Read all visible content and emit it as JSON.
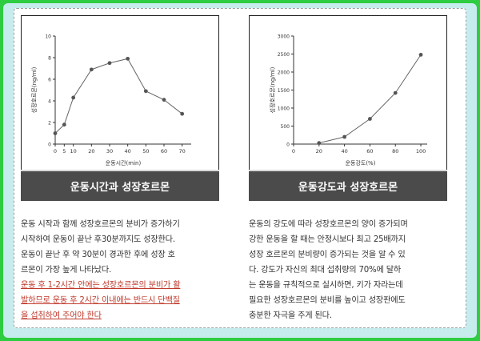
{
  "chart_data": [
    {
      "type": "line",
      "title": "운동시간과 성장호르몬",
      "xlabel": "운동시간(min)",
      "ylabel": "성장호르몬(ng/ml)",
      "x": [
        0,
        5,
        10,
        20,
        30,
        40,
        50,
        60,
        70
      ],
      "values": [
        1,
        1.8,
        4.3,
        6.9,
        7.5,
        7.9,
        4.9,
        4.1,
        2.8
      ],
      "xlim": [
        0,
        75
      ],
      "ylim": [
        0,
        10
      ],
      "xticks": [
        "0",
        "5",
        "10",
        "20",
        "30",
        "40",
        "50",
        "60",
        "70"
      ],
      "yticks": [
        "0",
        "2",
        "4",
        "6",
        "8",
        "10"
      ],
      "color": "#555555"
    },
    {
      "type": "line",
      "title": "운동강도과 성장호르몬",
      "xlabel": "운동강도(%)",
      "ylabel": "성장호르몬(ng/ml)",
      "x": [
        20,
        40,
        60,
        80,
        100
      ],
      "values": [
        30,
        200,
        700,
        1420,
        2480
      ],
      "xlim": [
        0,
        105
      ],
      "ylim": [
        0,
        3000
      ],
      "xticks": [
        "0",
        "20",
        "40",
        "60",
        "80",
        "100"
      ],
      "yticks": [
        "0",
        "500",
        "1000",
        "1500",
        "2000",
        "2500",
        "3000"
      ],
      "color": "#555555"
    }
  ],
  "left": {
    "lines": [
      "운동 시작과 함께 성장호르몬의 분비가 증가하기",
      "시작하여 운동이 끝난 후30분까지도 성장한다.",
      "운동이 끝난 후 약 30분이 경과한 후에 성장 호",
      "르몬이 가장 높게 나타났다."
    ],
    "highlight": [
      "운동 후 1-2시간 안에는 성장호르몬의 분비가 활",
      "발하므로 운동 후 2시간 이내에는 반드시 단백질",
      "을 섭취하여 주어야 한다"
    ]
  },
  "right": {
    "lines": [
      "운동의 강도에 따라 성장호르몬의 양이 증가되며",
      "강한 운동을 할 때는 안정시보다 최고 25배까지",
      "성장 호르몬의 분비량이 증가되는 것을 알 수 있",
      "다. 강도가 자신의 최대 섭취량의 70%에 달하",
      "는 운동을 규칙적으로 실시하면, 키가 자라는데",
      "필요한 성장호르몬의 분비를 높이고 성장판에도",
      "충분한 자극을 주게 된다."
    ]
  }
}
